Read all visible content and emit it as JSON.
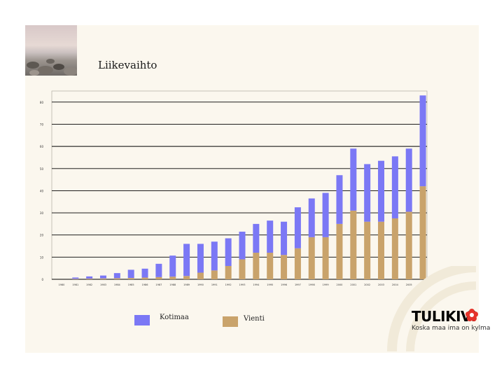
{
  "colors": {
    "kotimaa": "#7b78f5",
    "vienti": "#c9a36b",
    "slide_bg": "#fbf7ee",
    "logo_red": "#e5332a",
    "arc": "#f1ead9"
  },
  "title": "Liikevaihto",
  "legend": [
    {
      "label": "Kotimaa",
      "color": "#7b78f5"
    },
    {
      "label": "Vienti",
      "color": "#c9a36b"
    }
  ],
  "logo": {
    "name": "TULIKIVI",
    "tagline": "Koska maa ima on kylma",
    "icon": "flower-emblem-icon"
  },
  "photo": {
    "icon": "seashore-photo"
  },
  "chart_data": {
    "type": "bar",
    "stacked": true,
    "title": "Liikevaihto",
    "ylim": [
      0,
      85
    ],
    "ytick_values": [
      0,
      10,
      20,
      30,
      40,
      50,
      60,
      70,
      80
    ],
    "grid": true,
    "legend_position": "bottom",
    "categories": [
      "1980",
      "1981",
      "1982",
      "1983",
      "1984",
      "1985",
      "1986",
      "1987",
      "1988",
      "1989",
      "1990",
      "1991",
      "1992",
      "1993",
      "1994",
      "1995",
      "1996",
      "1997",
      "1998",
      "1999",
      "2000",
      "2001",
      "2002",
      "2003",
      "2004",
      "2005",
      "2006"
    ],
    "series": [
      {
        "name": "Vienti",
        "values": [
          0,
          0.2,
          0.3,
          0.4,
          0.5,
          0.6,
          0.8,
          1.0,
          1.2,
          1.5,
          3.0,
          4.0,
          6.0,
          9.0,
          12.0,
          12.0,
          11.0,
          14.0,
          19.0,
          19.0,
          25.0,
          31.0,
          26.0,
          26.0,
          27.5,
          30.5,
          42.0
        ]
      },
      {
        "name": "Kotimaa",
        "values": [
          0,
          0.6,
          1.0,
          1.3,
          2.3,
          3.7,
          4.0,
          6.0,
          9.5,
          14.5,
          13.0,
          13.0,
          12.5,
          12.5,
          13.0,
          14.5,
          15.0,
          18.5,
          17.5,
          20.0,
          22.0,
          28.0,
          26.0,
          27.5,
          28.0,
          28.5,
          41.0
        ]
      }
    ]
  }
}
